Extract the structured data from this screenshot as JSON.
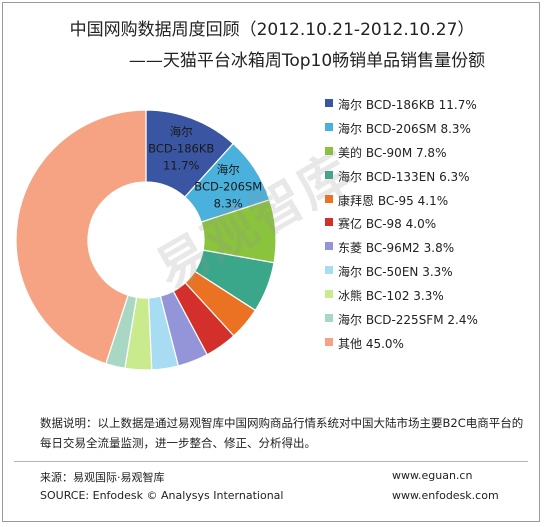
{
  "title_line1": "中国网购数据周度回顾（2012.10.21-2012.10.27）",
  "title_line2": "——天猫平台冰箱周Top10畅销单品销售量份额",
  "chart_data": {
    "type": "pie",
    "style": "donut",
    "title": "中国网购数据周度回顾（2012.10.21-2012.10.27）——天猫平台冰箱周Top10畅销单品销售量份额",
    "unit": "%",
    "legend_position": "right",
    "slices": [
      {
        "name": "海尔 BCD-186KB",
        "value": 11.7,
        "color": "#3a56a3",
        "legend": "海尔 BCD-186KB 11.7%",
        "label_brand": "海尔",
        "label_model": "BCD-186KB",
        "label_value": "11.7%"
      },
      {
        "name": "海尔 BCD-206SM",
        "value": 8.3,
        "color": "#4ab0dc",
        "legend": "海尔 BCD-206SM  8.3%",
        "label_brand": "海尔",
        "label_model": "BCD-206SM",
        "label_value": "8.3%"
      },
      {
        "name": "美的 BC-90M",
        "value": 7.8,
        "color": "#8ac33c",
        "legend": "美的 BC-90M 7.8%"
      },
      {
        "name": "海尔 BCD-133EN",
        "value": 6.3,
        "color": "#3aa68a",
        "legend": "海尔 BCD-133EN 6.3%"
      },
      {
        "name": "康拜恩 BC-95",
        "value": 4.1,
        "color": "#ea7222",
        "legend": "康拜恩 BC-95 4.1%"
      },
      {
        "name": "赛亿 BC-98",
        "value": 4.0,
        "color": "#d4302b",
        "legend": "赛亿 BC-98 4.0%"
      },
      {
        "name": "东菱 BC-96M2",
        "value": 3.8,
        "color": "#9494d8",
        "legend": "东菱 BC-96M2 3.8%"
      },
      {
        "name": "海尔 BC-50EN",
        "value": 3.3,
        "color": "#a8dcf2",
        "legend": "海尔 BC-50EN 3.3%"
      },
      {
        "name": "冰熊 BC-102",
        "value": 3.3,
        "color": "#c9eb8d",
        "legend": "冰熊 BC-102 3.3%"
      },
      {
        "name": "海尔 BCD-225SFM",
        "value": 2.4,
        "color": "#a8d8c4",
        "legend": "海尔 BCD-225SFM 2.4%"
      },
      {
        "name": "其他",
        "value": 45.0,
        "color": "#f6a384",
        "legend": "其他 45.0%"
      }
    ]
  },
  "note": "数据说明：以上数据是通过易观智库中国网购商品行情系统对中国大陆市场主要B2C电商平台的每日交易全流量监测，进一步整合、修正、分析得出。",
  "footer": {
    "source_cn": "来源：易观国际·易观智库",
    "source_en": "SOURCE: Enfodesk © Analysys International",
    "url1": "www.eguan.cn",
    "url2": "www.enfodesk.com"
  },
  "watermark": "易观智库"
}
